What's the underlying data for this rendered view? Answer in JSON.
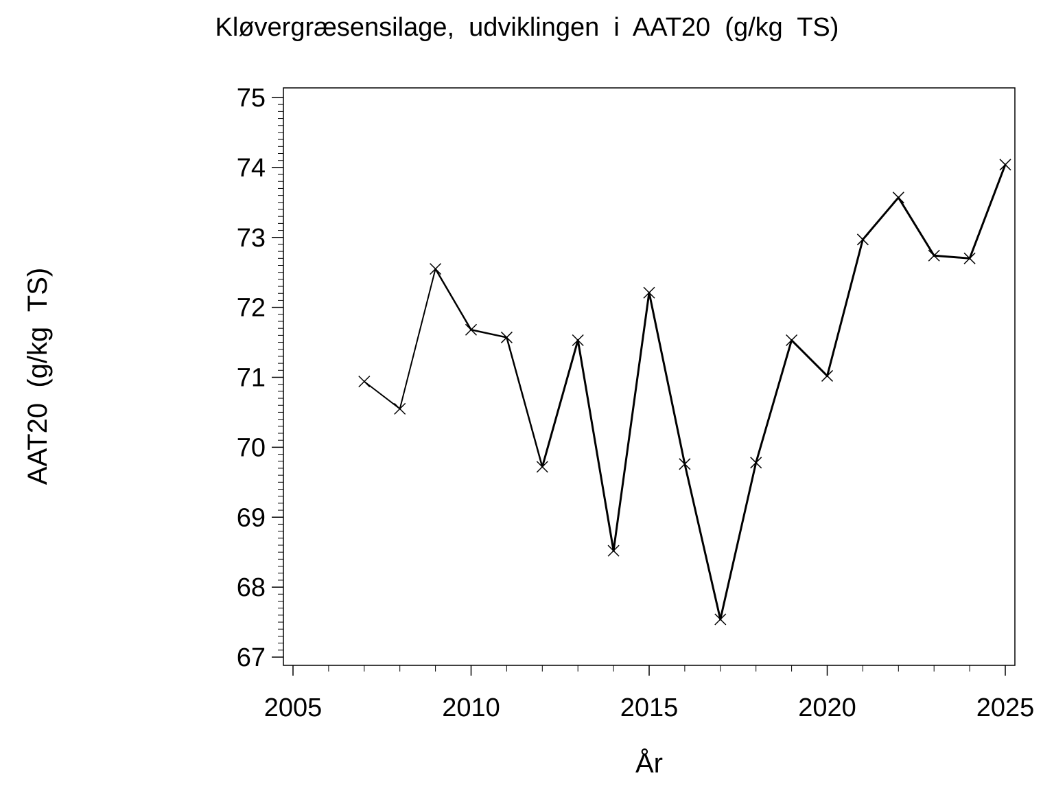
{
  "chart_data": {
    "type": "line",
    "title": "Kløvergræsensilage,  udviklingen  i  AAT20  (g/kg  TS)",
    "xlabel": "År",
    "ylabel": "AAT20  (g/kg  TS)",
    "xlim": [
      2005,
      2025
    ],
    "ylim": [
      67,
      75
    ],
    "x_ticks": [
      2005,
      2010,
      2015,
      2020,
      2025
    ],
    "y_ticks": [
      67,
      68,
      69,
      70,
      71,
      72,
      73,
      74,
      75
    ],
    "grid": false,
    "legend": "none",
    "marker": "x",
    "line_color": "#000000",
    "series": [
      {
        "x": [
          2007,
          2008,
          2009,
          2010,
          2011,
          2012,
          2013,
          2014,
          2015,
          2016,
          2017,
          2018,
          2019,
          2020,
          2021,
          2022,
          2023,
          2024,
          2025
        ],
        "values": [
          70.94,
          70.55,
          72.55,
          71.68,
          71.57,
          69.72,
          71.53,
          68.52,
          72.21,
          69.76,
          67.54,
          69.78,
          71.53,
          71.02,
          72.97,
          73.57,
          72.74,
          72.7,
          74.04
        ]
      }
    ]
  }
}
